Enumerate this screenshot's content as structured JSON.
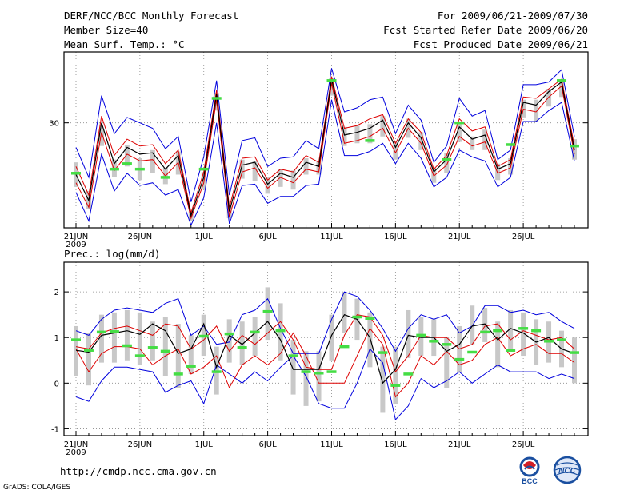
{
  "header": {
    "title": "DERF/NCC/BCC Monthly Forecast",
    "member": "Member Size=40",
    "var1": "Mean Surf. Temp.: °C",
    "period": "For 2009/06/21-2009/07/30",
    "started": "Fcst Started Refer Date 2009/06/20",
    "produced": "Fcst Produced Date 2009/06/21"
  },
  "footer": {
    "url": "http://cmdp.ncc.cma.gov.cn",
    "grads": "GrADS: COLA/IGES",
    "logo1_text": "BCC",
    "logo2_text": "NCC"
  },
  "colors": {
    "envelope": "#0000dd",
    "spread": "#dd0000",
    "mean": "#000000",
    "box": "#c8c8c8",
    "obs": "#44dd44"
  },
  "chart_data": [
    {
      "type": "line",
      "title": "Mean Surf. Temp.: °C",
      "x_tick_labels": [
        "21JUN",
        "26JUN",
        "1JUL",
        "6JUL",
        "11JUL",
        "16JUL",
        "21JUL",
        "26JUL"
      ],
      "year_label": "2009",
      "y_tick_labels": [
        "30"
      ],
      "ylim": [
        22.3,
        35.2
      ],
      "series": [
        {
          "name": "max",
          "values": [
            28.2,
            26.0,
            32.0,
            29.2,
            30.4,
            30.0,
            29.6,
            28.1,
            29.0,
            24.2,
            27.5,
            33.1,
            24.7,
            28.7,
            28.9,
            26.8,
            27.4,
            27.5,
            28.7,
            28.1,
            34.0,
            30.8,
            31.1,
            31.7,
            31.9,
            29.2,
            31.3,
            30.2,
            27.1,
            28.3,
            31.8,
            30.5,
            30.9,
            27.3,
            28.0,
            32.8,
            32.8,
            33.0,
            33.9,
            29.0
          ]
        },
        {
          "name": "upper",
          "values": [
            26.8,
            24.7,
            30.5,
            27.6,
            28.8,
            28.3,
            28.4,
            27.0,
            28.0,
            23.4,
            26.4,
            32.4,
            23.8,
            27.4,
            27.5,
            25.8,
            26.6,
            26.4,
            27.6,
            27.1,
            33.4,
            29.6,
            29.8,
            30.3,
            30.6,
            28.5,
            30.3,
            29.3,
            26.6,
            27.6,
            30.3,
            29.4,
            29.7,
            26.8,
            27.3,
            31.9,
            31.8,
            32.5,
            33.2,
            28.3
          ]
        },
        {
          "name": "mean",
          "values": [
            26.2,
            24.3,
            30.0,
            27.0,
            28.2,
            27.7,
            27.8,
            26.6,
            27.6,
            23.2,
            26.0,
            32.1,
            23.5,
            26.9,
            27.1,
            25.5,
            26.3,
            26.0,
            27.1,
            26.8,
            33.2,
            29.1,
            29.3,
            29.6,
            30.2,
            28.2,
            30.0,
            28.9,
            26.4,
            27.3,
            29.7,
            28.8,
            29.1,
            26.6,
            27.0,
            31.5,
            31.3,
            32.3,
            33.0,
            28.0
          ]
        },
        {
          "name": "lower",
          "values": [
            25.6,
            23.8,
            29.3,
            26.5,
            27.7,
            27.2,
            27.3,
            26.1,
            27.1,
            23.0,
            25.6,
            31.7,
            23.1,
            26.4,
            26.7,
            25.2,
            26.0,
            25.6,
            26.6,
            26.4,
            32.9,
            28.5,
            28.7,
            29.0,
            29.6,
            27.8,
            29.6,
            28.5,
            26.1,
            26.9,
            29.0,
            28.3,
            28.6,
            26.3,
            26.7,
            31.0,
            30.8,
            31.9,
            32.7,
            27.7
          ]
        },
        {
          "name": "min",
          "values": [
            24.9,
            22.8,
            27.7,
            25.0,
            26.3,
            25.4,
            25.6,
            24.7,
            25.1,
            22.5,
            24.5,
            30.0,
            22.6,
            25.4,
            25.5,
            24.1,
            24.6,
            24.6,
            25.4,
            25.5,
            31.7,
            27.6,
            27.6,
            27.9,
            28.5,
            27.0,
            28.5,
            27.4,
            25.3,
            26.0,
            28.0,
            27.5,
            27.2,
            25.3,
            26.0,
            30.1,
            30.1,
            30.9,
            31.5,
            27.2
          ]
        },
        {
          "name": "box_top",
          "values": [
            27.1,
            25.0,
            29.6,
            27.3,
            28.4,
            27.4,
            28.0,
            26.7,
            27.9,
            23.5,
            26.4,
            32.2,
            23.9,
            27.3,
            27.2,
            26.0,
            26.6,
            26.5,
            27.4,
            27.2,
            33.3,
            29.7,
            29.8,
            29.9,
            30.5,
            28.6,
            30.3,
            29.3,
            26.7,
            27.8,
            29.9,
            29.0,
            29.5,
            27.0,
            27.4,
            31.7,
            31.7,
            32.5,
            33.0,
            28.8
          ]
        },
        {
          "name": "box_bottom",
          "values": [
            25.3,
            23.7,
            28.3,
            26.0,
            26.8,
            25.8,
            26.3,
            25.5,
            26.2,
            22.8,
            25.1,
            30.9,
            23.0,
            25.9,
            25.7,
            24.8,
            25.3,
            25.1,
            26.2,
            26.2,
            32.0,
            28.3,
            28.5,
            28.5,
            29.0,
            27.3,
            28.9,
            28.0,
            25.6,
            26.3,
            28.6,
            28.0,
            28.0,
            25.8,
            26.2,
            30.4,
            30.1,
            31.2,
            31.9,
            27.3
          ]
        },
        {
          "name": "observed",
          "values": [
            26.3,
            null,
            null,
            26.6,
            27.0,
            26.6,
            null,
            26.0,
            null,
            null,
            26.6,
            31.8,
            null,
            null,
            null,
            null,
            null,
            null,
            null,
            null,
            33.1,
            null,
            null,
            28.7,
            null,
            null,
            null,
            null,
            null,
            27.3,
            30.0,
            null,
            null,
            null,
            28.4,
            null,
            null,
            null,
            33.1,
            28.3
          ]
        }
      ]
    },
    {
      "type": "line",
      "title": "Prec.: log(mm/d)",
      "x_tick_labels": [
        "21JUN",
        "26JUN",
        "1JUL",
        "6JUL",
        "11JUL",
        "16JUL",
        "21JUL",
        "26JUL"
      ],
      "year_label": "2009",
      "y_tick_labels": [
        "2",
        "1",
        "0",
        "-1"
      ],
      "ylim": [
        -1.15,
        2.65
      ],
      "series": [
        {
          "name": "max",
          "values": [
            1.15,
            1.05,
            1.4,
            1.6,
            1.65,
            1.6,
            1.55,
            1.75,
            1.85,
            1.05,
            1.25,
            0.85,
            0.9,
            1.5,
            1.6,
            1.85,
            1.2,
            0.65,
            0.65,
            0.65,
            1.4,
            2.0,
            1.9,
            1.6,
            1.2,
            0.7,
            1.2,
            1.5,
            1.4,
            1.5,
            1.1,
            1.25,
            1.7,
            1.7,
            1.55,
            1.6,
            1.5,
            1.55,
            1.35,
            1.2
          ]
        },
        {
          "name": "upper",
          "values": [
            0.8,
            0.75,
            1.1,
            1.2,
            1.25,
            1.15,
            1.05,
            1.3,
            1.25,
            0.75,
            0.95,
            1.25,
            0.7,
            1.05,
            0.85,
            1.1,
            1.35,
            0.95,
            0.35,
            0.3,
            0.3,
            1.05,
            1.5,
            1.45,
            1.05,
            0.25,
            0.6,
            1.05,
            1.0,
            1.0,
            0.75,
            0.85,
            1.25,
            1.3,
            0.95,
            1.15,
            1.05,
            0.95,
            1.0,
            0.75
          ]
        },
        {
          "name": "mean",
          "values": [
            0.72,
            0.68,
            1.05,
            1.1,
            1.15,
            1.07,
            1.3,
            1.15,
            0.65,
            0.75,
            1.3,
            0.35,
            1.05,
            0.85,
            1.1,
            1.35,
            0.95,
            0.3,
            0.3,
            0.3,
            1.05,
            1.5,
            1.4,
            1.0,
            0.0,
            0.3,
            1.05,
            1.0,
            1.0,
            0.7,
            0.85,
            1.25,
            1.3,
            0.95,
            1.2,
            1.1,
            0.9,
            1.0,
            0.75,
            0.65
          ]
        },
        {
          "name": "lower",
          "values": [
            0.75,
            0.25,
            0.65,
            0.8,
            0.8,
            0.75,
            0.4,
            0.6,
            0.75,
            0.2,
            0.35,
            0.6,
            -0.1,
            0.4,
            0.6,
            0.4,
            0.65,
            1.1,
            0.6,
            0.0,
            0.0,
            0.0,
            0.6,
            1.2,
            0.85,
            -0.3,
            0.0,
            0.6,
            0.4,
            0.7,
            0.4,
            0.5,
            0.85,
            1.0,
            0.6,
            0.75,
            0.85,
            0.65,
            0.65,
            0.45
          ]
        },
        {
          "name": "min",
          "values": [
            -0.3,
            -0.4,
            0.05,
            0.35,
            0.35,
            0.3,
            0.25,
            -0.2,
            -0.05,
            0.05,
            -0.45,
            0.4,
            0.2,
            0.0,
            0.25,
            0.05,
            0.35,
            0.6,
            0.15,
            -0.45,
            -0.55,
            -0.55,
            0.0,
            0.75,
            0.45,
            -0.8,
            -0.5,
            0.1,
            -0.1,
            0.05,
            0.25,
            0.0,
            0.2,
            0.4,
            0.25,
            0.25,
            0.25,
            0.1,
            0.2,
            0.1
          ]
        },
        {
          "name": "box_top",
          "values": [
            1.25,
            1.1,
            1.5,
            1.55,
            1.6,
            1.55,
            1.35,
            1.45,
            1.3,
            1.05,
            1.5,
            0.8,
            1.4,
            1.35,
            1.45,
            2.1,
            1.75,
            0.95,
            0.7,
            0.7,
            1.5,
            2.0,
            1.85,
            1.55,
            0.8,
            0.8,
            1.6,
            1.45,
            1.4,
            1.0,
            1.25,
            1.7,
            1.65,
            1.35,
            1.6,
            1.55,
            1.4,
            1.35,
            1.15,
            1.0
          ]
        },
        {
          "name": "box_bottom",
          "values": [
            0.15,
            -0.05,
            0.45,
            0.45,
            0.5,
            0.4,
            0.5,
            0.15,
            -0.1,
            0.2,
            0.6,
            -0.25,
            0.45,
            0.4,
            0.6,
            0.95,
            0.5,
            -0.25,
            -0.5,
            -0.4,
            0.5,
            1.1,
            0.95,
            0.35,
            -0.65,
            -0.45,
            0.55,
            0.6,
            0.6,
            -0.1,
            0.25,
            0.85,
            0.9,
            0.35,
            0.75,
            0.6,
            0.4,
            0.45,
            0.35,
            0.0
          ]
        },
        {
          "name": "observed",
          "values": [
            0.95,
            0.72,
            1.12,
            1.13,
            0.82,
            0.6,
            0.78,
            0.7,
            0.2,
            0.37,
            1.03,
            0.25,
            1.08,
            0.78,
            1.12,
            1.57,
            1.15,
            0.6,
            0.25,
            0.22,
            0.25,
            0.8,
            1.45,
            1.42,
            0.67,
            -0.05,
            0.2,
            1.05,
            0.92,
            0.85,
            0.52,
            0.68,
            1.12,
            1.15,
            0.72,
            1.2,
            1.15,
            0.92,
            0.95,
            0.67
          ]
        }
      ]
    }
  ]
}
